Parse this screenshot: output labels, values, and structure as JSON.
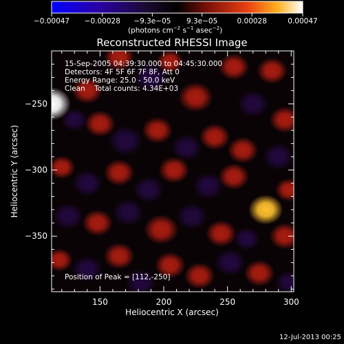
{
  "chart_data": {
    "type": "heatmap",
    "title": "Reconstructed RHESSI Image",
    "xlabel": "Heliocentric X (arcsec)",
    "ylabel": "Heliocentric Y (arcsec)",
    "xlim": [
      112,
      302
    ],
    "ylim": [
      -392,
      -210
    ],
    "xticks": [
      150,
      200,
      250,
      300
    ],
    "xtick_labels": [
      "150",
      "200",
      "250",
      "300"
    ],
    "yticks": [
      -250,
      -300,
      -350
    ],
    "ytick_labels": [
      "−250",
      "−300",
      "−350"
    ],
    "colormap": "heat-bipolar",
    "colorbar": {
      "range": [
        -0.00047,
        0.00047
      ],
      "ticks": [
        -0.00047,
        -0.00028,
        -9.3e-05,
        9.3e-05,
        0.00028,
        0.00047
      ],
      "tick_labels": [
        "−0.00047",
        "−0.00028",
        "−9.3e−05",
        "9.3e−05",
        "0.00028",
        "0.00047"
      ],
      "unit_prefix": "(photons cm",
      "unit_sup1": "−2",
      "unit_mid": " s",
      "unit_sup2": "−1",
      "unit_mid2": " asec",
      "unit_sup3": "−2",
      "unit_suffix": ")"
    },
    "peak": {
      "x": 112,
      "y": -250,
      "value": 0.00047
    },
    "blobs": [
      {
        "x": 112,
        "y": -250,
        "value": 0.00047,
        "r": 10
      },
      {
        "x": 140,
        "y": -240,
        "value": 0.00018,
        "r": 8
      },
      {
        "x": 165,
        "y": -215,
        "value": 0.0002,
        "r": 8
      },
      {
        "x": 190,
        "y": -230,
        "value": -0.00014,
        "r": 9
      },
      {
        "x": 205,
        "y": -218,
        "value": 0.00016,
        "r": 7
      },
      {
        "x": 225,
        "y": -245,
        "value": 0.00017,
        "r": 9
      },
      {
        "x": 255,
        "y": -222,
        "value": 0.00019,
        "r": 8
      },
      {
        "x": 270,
        "y": -250,
        "value": -0.00012,
        "r": 8
      },
      {
        "x": 285,
        "y": -225,
        "value": 0.00015,
        "r": 8
      },
      {
        "x": 295,
        "y": -262,
        "value": 0.00016,
        "r": 8
      },
      {
        "x": 130,
        "y": -262,
        "value": -0.00012,
        "r": 7
      },
      {
        "x": 150,
        "y": -265,
        "value": 0.00017,
        "r": 8
      },
      {
        "x": 170,
        "y": -278,
        "value": -0.00016,
        "r": 9
      },
      {
        "x": 195,
        "y": -270,
        "value": 0.00019,
        "r": 8
      },
      {
        "x": 218,
        "y": -283,
        "value": -0.00013,
        "r": 8
      },
      {
        "x": 240,
        "y": -275,
        "value": 0.00017,
        "r": 8
      },
      {
        "x": 262,
        "y": -285,
        "value": 0.0002,
        "r": 8
      },
      {
        "x": 290,
        "y": -290,
        "value": -0.00014,
        "r": 8
      },
      {
        "x": 120,
        "y": -298,
        "value": 0.00016,
        "r": 7
      },
      {
        "x": 140,
        "y": -310,
        "value": -0.00013,
        "r": 8
      },
      {
        "x": 165,
        "y": -302,
        "value": 0.00018,
        "r": 8
      },
      {
        "x": 188,
        "y": -315,
        "value": -0.00012,
        "r": 8
      },
      {
        "x": 208,
        "y": -300,
        "value": 0.00019,
        "r": 8
      },
      {
        "x": 235,
        "y": -312,
        "value": -0.00014,
        "r": 8
      },
      {
        "x": 255,
        "y": -305,
        "value": 0.00016,
        "r": 8
      },
      {
        "x": 280,
        "y": -330,
        "value": 0.00032,
        "r": 9
      },
      {
        "x": 298,
        "y": -315,
        "value": 0.00017,
        "r": 7
      },
      {
        "x": 125,
        "y": -335,
        "value": -0.00013,
        "r": 8
      },
      {
        "x": 148,
        "y": -340,
        "value": 0.00016,
        "r": 8
      },
      {
        "x": 172,
        "y": -332,
        "value": -0.00015,
        "r": 8
      },
      {
        "x": 198,
        "y": -345,
        "value": 0.0002,
        "r": 9
      },
      {
        "x": 222,
        "y": -335,
        "value": -0.00012,
        "r": 8
      },
      {
        "x": 245,
        "y": -348,
        "value": 0.00018,
        "r": 8
      },
      {
        "x": 265,
        "y": -352,
        "value": -0.00011,
        "r": 7
      },
      {
        "x": 295,
        "y": -350,
        "value": 0.00015,
        "r": 8
      },
      {
        "x": 118,
        "y": -368,
        "value": 0.00014,
        "r": 7
      },
      {
        "x": 140,
        "y": -375,
        "value": -0.00012,
        "r": 8
      },
      {
        "x": 165,
        "y": -365,
        "value": 0.00016,
        "r": 8
      },
      {
        "x": 182,
        "y": -385,
        "value": -0.00015,
        "r": 8
      },
      {
        "x": 205,
        "y": -372,
        "value": 0.00018,
        "r": 8
      },
      {
        "x": 228,
        "y": -380,
        "value": 0.00017,
        "r": 8
      },
      {
        "x": 252,
        "y": -370,
        "value": -0.00013,
        "r": 8
      },
      {
        "x": 275,
        "y": -378,
        "value": 0.00019,
        "r": 8
      },
      {
        "x": 298,
        "y": -385,
        "value": -0.00012,
        "r": 7
      }
    ]
  },
  "overlay": {
    "line1": "15-Sep-2005 04:39:30.000 to 04:45:30.000",
    "line2": "Detectors: 4F 5F 6F 7F 8F, Att 0",
    "line3": "Energy Range: 25.0 - 50.0 keV",
    "line4": "Clean    Total counts: 4.34E+03",
    "peak_label": "Position of Peak = [112,-250]"
  },
  "footer": {
    "timestamp": "12-Jul-2013 00:25"
  },
  "colors": {
    "background": "#000000",
    "text": "#ffffff",
    "negative_max": "#0000ff",
    "positive_max": "#ffffff"
  }
}
